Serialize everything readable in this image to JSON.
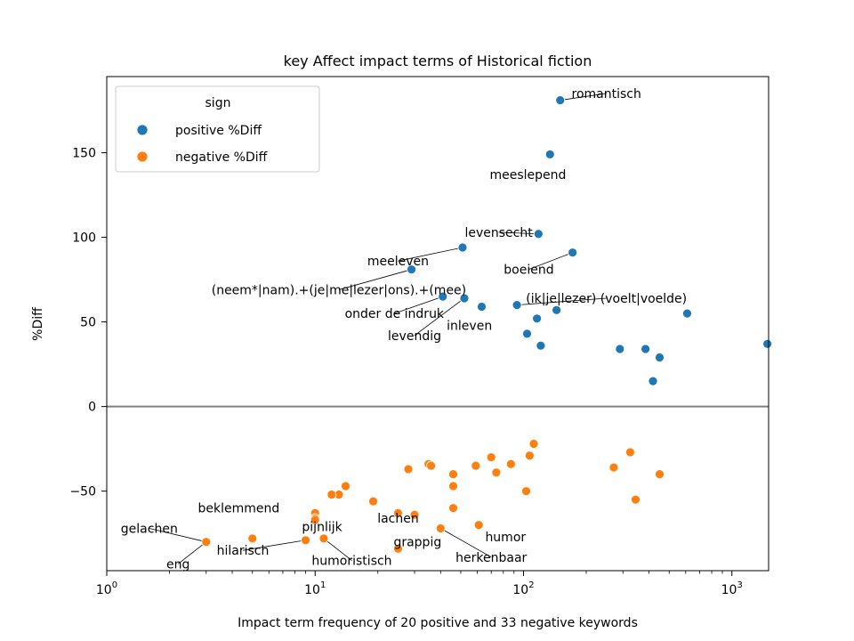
{
  "chart_data": {
    "type": "scatter",
    "title": "key Affect impact terms of Historical fiction",
    "xlabel": "Impact term frequency of 20 positive and 33 negative keywords",
    "ylabel": "%Diff",
    "x_scale": "log",
    "xlim": [
      1,
      1500
    ],
    "ylim": [
      -97,
      195
    ],
    "x_ticks": [
      {
        "value": 1,
        "base": "10",
        "exp": "0"
      },
      {
        "value": 10,
        "base": "10",
        "exp": "1"
      },
      {
        "value": 100,
        "base": "10",
        "exp": "2"
      },
      {
        "value": 1000,
        "base": "10",
        "exp": "3"
      }
    ],
    "y_ticks": [
      {
        "value": -50,
        "label": "−50"
      },
      {
        "value": 0,
        "label": "0"
      },
      {
        "value": 50,
        "label": "50"
      },
      {
        "value": 100,
        "label": "100"
      },
      {
        "value": 150,
        "label": "150"
      }
    ],
    "zero_line": true,
    "grid": false,
    "legend": {
      "title": "sign",
      "placement": "top-left",
      "entries": [
        {
          "label": "positive %Diff",
          "color": "#1f77b4"
        },
        {
          "label": "negative %Diff",
          "color": "#ff7f0e"
        }
      ]
    },
    "series": [
      {
        "name": "positive %Diff",
        "color": "#1f77b4",
        "points": [
          [
            150,
            181
          ],
          [
            134,
            149
          ],
          [
            118,
            102
          ],
          [
            172,
            91
          ],
          [
            51,
            94
          ],
          [
            29,
            81
          ],
          [
            41,
            65
          ],
          [
            52,
            64
          ],
          [
            63,
            59
          ],
          [
            93,
            60
          ],
          [
            116,
            52
          ],
          [
            144,
            57
          ],
          [
            104,
            43
          ],
          [
            121,
            36
          ],
          [
            610,
            55
          ],
          [
            290,
            34
          ],
          [
            385,
            34
          ],
          [
            450,
            29
          ],
          [
            418,
            15
          ],
          [
            1480,
            37
          ]
        ]
      },
      {
        "name": "negative %Diff",
        "color": "#ff7f0e",
        "points": [
          [
            112,
            -22
          ],
          [
            325,
            -27
          ],
          [
            107,
            -29
          ],
          [
            70,
            -30
          ],
          [
            87,
            -34
          ],
          [
            59,
            -35
          ],
          [
            35,
            -34
          ],
          [
            36,
            -35
          ],
          [
            28,
            -37
          ],
          [
            271,
            -36
          ],
          [
            74,
            -39
          ],
          [
            46,
            -40
          ],
          [
            450,
            -40
          ],
          [
            46,
            -47
          ],
          [
            14,
            -47
          ],
          [
            13,
            -52
          ],
          [
            12,
            -52
          ],
          [
            103,
            -50
          ],
          [
            19,
            -56
          ],
          [
            345,
            -55
          ],
          [
            46,
            -60
          ],
          [
            10,
            -63
          ],
          [
            10,
            -66
          ],
          [
            10,
            -67
          ],
          [
            25,
            -63
          ],
          [
            30,
            -64
          ],
          [
            61,
            -70
          ],
          [
            40,
            -72
          ],
          [
            3,
            -80
          ],
          [
            5,
            -78
          ],
          [
            9,
            -79
          ],
          [
            11,
            -78
          ],
          [
            25,
            -84
          ]
        ]
      }
    ],
    "annotations": [
      {
        "text": "romantisch",
        "x": 150,
        "y": 181,
        "tx": 250,
        "ty": 185
      },
      {
        "text": "meeslepend",
        "x": 134,
        "y": 149,
        "tx": 105,
        "ty": 137
      },
      {
        "text": "levensecht",
        "x": 118,
        "y": 102,
        "tx": 76,
        "ty": 103
      },
      {
        "text": "meeleven",
        "x": 51,
        "y": 94,
        "tx": 25,
        "ty": 86
      },
      {
        "text": "boeiend",
        "x": 172,
        "y": 91,
        "tx": 106,
        "ty": 81
      },
      {
        "text": "(neem*|nam).+(je|me|lezer|ons).+(mee)",
        "x": 29,
        "y": 81,
        "tx": 13,
        "ty": 69
      },
      {
        "text": "(ik|je|lezer) (voelt|voelde)",
        "x": 93,
        "y": 60,
        "tx": 250,
        "ty": 64
      },
      {
        "text": "onder de indruk",
        "x": 41,
        "y": 65,
        "tx": 24,
        "ty": 55
      },
      {
        "text": "inleven",
        "x": 63,
        "y": 59,
        "tx": 55,
        "ty": 48
      },
      {
        "text": "levendig",
        "x": 52,
        "y": 64,
        "tx": 30,
        "ty": 42
      },
      {
        "text": "beklemmend",
        "x": 5,
        "y": -78,
        "tx": 4.3,
        "ty": -60
      },
      {
        "text": "gelachen",
        "x": 3,
        "y": -80,
        "tx": 1.6,
        "ty": -72
      },
      {
        "text": "pijnlijk",
        "x": 10,
        "y": -66,
        "tx": 10.8,
        "ty": -71
      },
      {
        "text": "lachen",
        "x": 25,
        "y": -63,
        "tx": 25,
        "ty": -66
      },
      {
        "text": "hilarisch",
        "x": 9,
        "y": -79,
        "tx": 4.5,
        "ty": -85
      },
      {
        "text": "grappig",
        "x": 40,
        "y": -72,
        "tx": 31,
        "ty": -80
      },
      {
        "text": "humor",
        "x": 61,
        "y": -70,
        "tx": 82,
        "ty": -77
      },
      {
        "text": "eng",
        "x": 3,
        "y": -80,
        "tx": 2.2,
        "ty": -93
      },
      {
        "text": "humoristisch",
        "x": 11,
        "y": -78,
        "tx": 15,
        "ty": -91
      },
      {
        "text": "herkenbaar",
        "x": 40,
        "y": -72,
        "tx": 70,
        "ty": -89
      }
    ]
  }
}
